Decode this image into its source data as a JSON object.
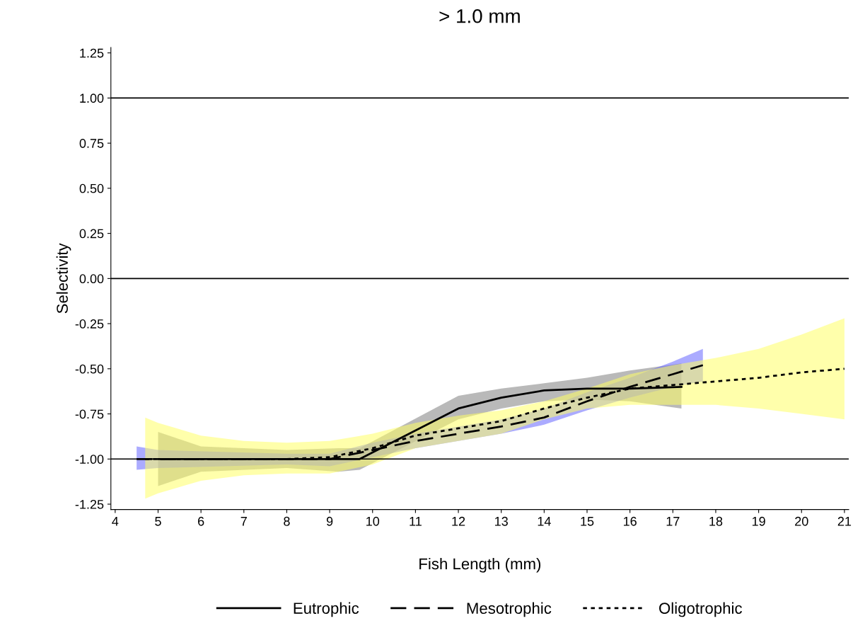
{
  "chart_data": {
    "type": "line",
    "title": "> 1.0 mm",
    "xlabel": "Fish Length (mm)",
    "ylabel": "Selectivity",
    "xlim": [
      3.9,
      21.1
    ],
    "xticks": [
      4,
      5,
      6,
      7,
      8,
      9,
      10,
      11,
      12,
      13,
      14,
      15,
      16,
      17,
      18,
      19,
      20,
      21
    ],
    "ylim": [
      -1.28,
      1.28
    ],
    "yticks": [
      {
        "value": -1.25,
        "label": "-1.25"
      },
      {
        "value": -1.0,
        "label": "-1.00"
      },
      {
        "value": -0.75,
        "label": "-0.75"
      },
      {
        "value": -0.5,
        "label": "-0.50"
      },
      {
        "value": -0.25,
        "label": "-0.25"
      },
      {
        "value": 0,
        "label": "0.00"
      },
      {
        "value": 0.25,
        "label": "0.25"
      },
      {
        "value": 0.5,
        "label": "0.50"
      },
      {
        "value": 0.75,
        "label": "0.75"
      },
      {
        "value": 1.0,
        "label": "1.00"
      },
      {
        "value": 1.25,
        "label": "1.25"
      }
    ],
    "grid": false,
    "legend": "bottom",
    "marker": "none",
    "ref_lines": [
      {
        "axis": "y",
        "value": 1.0,
        "color": "#000000"
      },
      {
        "axis": "y",
        "value": 0,
        "color": "#000000"
      },
      {
        "axis": "y",
        "value": -1.0,
        "color": "#000000"
      }
    ],
    "series": [
      {
        "name": "Eutrophic",
        "color": "#000000",
        "line_style": "solid",
        "x": [
          5,
          6,
          8,
          9.2,
          9.7,
          12,
          13,
          14,
          15,
          16,
          17.2
        ],
        "values": [
          -1.0,
          -1.0,
          -1.0,
          -1.0,
          -1.0,
          -0.72,
          -0.66,
          -0.62,
          -0.61,
          -0.61,
          -0.6
        ],
        "lower": [
          -1.15,
          -1.07,
          -1.05,
          -1.07,
          -1.06,
          -0.78,
          -0.72,
          -0.68,
          -0.67,
          -0.68,
          -0.72
        ],
        "upper": [
          -0.85,
          -0.93,
          -0.95,
          -0.94,
          -0.94,
          -0.65,
          -0.61,
          -0.58,
          -0.55,
          -0.51,
          -0.47
        ]
      },
      {
        "name": "Mesotrophic",
        "color": "#000000",
        "line_style": "dashed",
        "x": [
          4.5,
          5,
          8,
          9,
          10,
          11,
          12,
          13,
          14,
          15,
          16,
          17,
          17.7
        ],
        "values": [
          -1.0,
          -1.0,
          -1.0,
          -1.0,
          -0.95,
          -0.9,
          -0.86,
          -0.82,
          -0.77,
          -0.68,
          -0.6,
          -0.53,
          -0.48
        ],
        "lower": [
          -1.06,
          -1.05,
          -1.03,
          -1.04,
          -0.99,
          -0.94,
          -0.9,
          -0.86,
          -0.81,
          -0.73,
          -0.66,
          -0.6,
          -0.57
        ],
        "upper": [
          -0.93,
          -0.95,
          -0.97,
          -0.97,
          -0.91,
          -0.86,
          -0.82,
          -0.78,
          -0.72,
          -0.63,
          -0.55,
          -0.46,
          -0.39
        ]
      },
      {
        "name": "Oligotrophic",
        "color": "#000000",
        "line_style": "dotted",
        "x": [
          4.7,
          5,
          6,
          7,
          8,
          9,
          10,
          11,
          12,
          13,
          14,
          15,
          16,
          17,
          18,
          19,
          20,
          21
        ],
        "values": [
          -1.0,
          -1.0,
          -1.0,
          -1.0,
          -1.0,
          -0.99,
          -0.94,
          -0.87,
          -0.83,
          -0.79,
          -0.72,
          -0.66,
          -0.61,
          -0.59,
          -0.57,
          -0.55,
          -0.52,
          -0.5
        ],
        "lower": [
          -1.22,
          -1.19,
          -1.12,
          -1.09,
          -1.08,
          -1.08,
          -1.03,
          -0.94,
          -0.9,
          -0.86,
          -0.78,
          -0.72,
          -0.7,
          -0.7,
          -0.7,
          -0.72,
          -0.75,
          -0.78
        ],
        "upper": [
          -0.77,
          -0.8,
          -0.87,
          -0.9,
          -0.91,
          -0.9,
          -0.86,
          -0.8,
          -0.76,
          -0.73,
          -0.68,
          -0.61,
          -0.53,
          -0.48,
          -0.44,
          -0.39,
          -0.31,
          -0.22
        ]
      }
    ]
  }
}
